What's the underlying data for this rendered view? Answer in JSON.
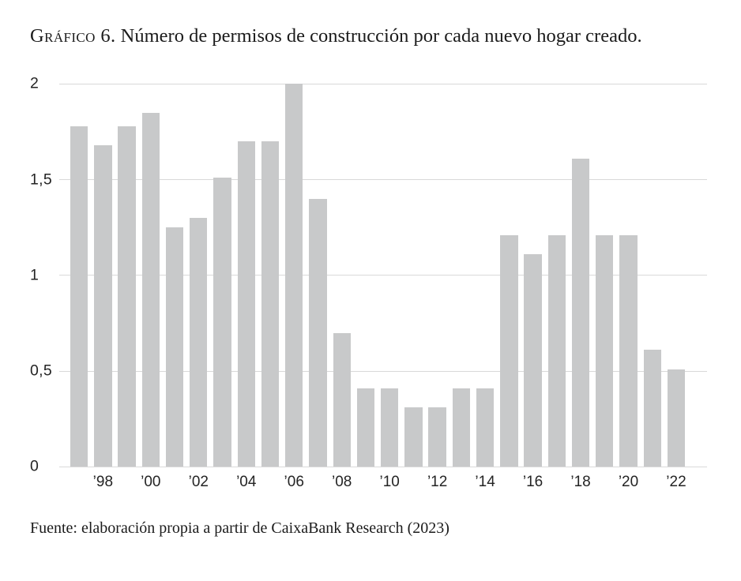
{
  "header": {
    "title_prefix": "Gráfico 6.",
    "title_rest": " Número de permisos de construcción por cada nuevo hogar creado."
  },
  "footer": {
    "source": "Fuente: elaboración propia a partir de CaixaBank Research (2023)"
  },
  "chart_data": {
    "type": "bar",
    "title": "Gráfico 6. Número de permisos de construcción por cada nuevo hogar creado.",
    "source": "Fuente: elaboración propia a partir de CaixaBank Research (2023)",
    "x": [
      1997,
      1998,
      1999,
      2000,
      2001,
      2002,
      2003,
      2004,
      2005,
      2006,
      2007,
      2008,
      2009,
      2010,
      2011,
      2012,
      2013,
      2014,
      2015,
      2016,
      2017,
      2018,
      2019,
      2020,
      2021,
      2022
    ],
    "values": [
      1.78,
      1.68,
      1.78,
      1.85,
      1.25,
      1.3,
      1.51,
      1.7,
      1.7,
      2.0,
      1.4,
      0.7,
      0.41,
      0.41,
      0.31,
      0.31,
      0.41,
      0.41,
      1.21,
      1.11,
      1.21,
      1.61,
      1.21,
      1.21,
      0.61,
      0.51
    ],
    "xtick_labels": [
      "",
      "’98",
      "",
      "’00",
      "",
      "’02",
      "",
      "’04",
      "",
      "’06",
      "",
      "’08",
      "",
      "’10",
      "",
      "’12",
      "",
      "’14",
      "",
      "’16",
      "",
      "’18",
      "",
      "’20",
      "",
      "’22"
    ],
    "yticks": [
      0,
      0.5,
      1,
      1.5,
      2
    ],
    "ytick_labels": [
      "0",
      "0,5",
      "1",
      "1,5",
      "2"
    ],
    "ylim": [
      0,
      2
    ],
    "grid": true,
    "legend": false,
    "bar_color": "#c8c9ca",
    "gridline_color": "#d9d9d9"
  }
}
